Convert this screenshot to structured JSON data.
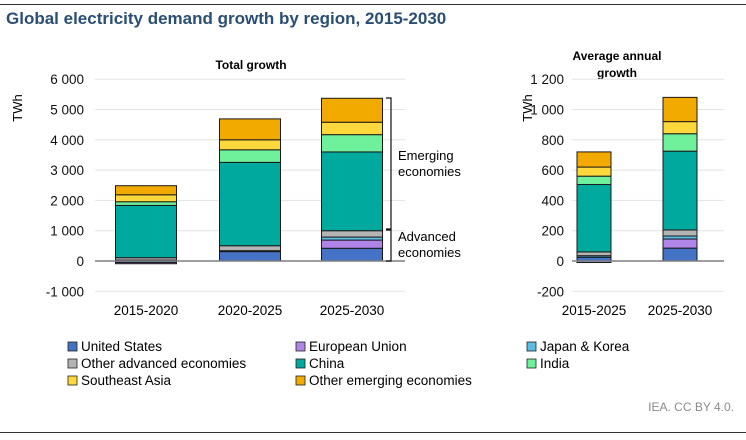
{
  "title": "Global electricity demand growth by region, 2015-2030",
  "credit": "IEA. CC BY 4.0.",
  "colors": {
    "United States": "#4472c4",
    "European Union": "#b085e8",
    "Japan & Korea": "#5bbce4",
    "Other advanced economies": "#b4b4b4",
    "China": "#00a99d",
    "India": "#6ff09a",
    "Southeast Asia": "#ffd93b",
    "Other emerging economies": "#f2a900"
  },
  "legend": [
    "United States",
    "European Union",
    "Japan & Korea",
    "Other advanced economies",
    "China",
    "India",
    "Southeast Asia",
    "Other emerging economies"
  ],
  "chart_data": [
    {
      "type": "bar",
      "stacked": true,
      "title": "Total  growth",
      "ylabel": "TWh",
      "ylim": [
        -1000,
        6000
      ],
      "yticks": [
        -1000,
        0,
        1000,
        2000,
        3000,
        4000,
        5000,
        6000
      ],
      "ytick_labels": [
        "-1 000",
        "0",
        "1 000",
        "2 000",
        "3 000",
        "4 000",
        "5 000",
        "6 000"
      ],
      "grid": true,
      "categories": [
        "2015-2020",
        "2020-2025",
        "2025-2030"
      ],
      "series": [
        {
          "name": "United States",
          "values": [
            -50,
            310,
            420
          ]
        },
        {
          "name": "European Union",
          "values": [
            -40,
            0,
            270
          ]
        },
        {
          "name": "Japan & Korea",
          "values": [
            30,
            30,
            100
          ]
        },
        {
          "name": "Other advanced economies",
          "values": [
            80,
            165,
            210
          ]
        },
        {
          "name": "China",
          "values": [
            1725,
            2750,
            2600
          ]
        },
        {
          "name": "India",
          "values": [
            120,
            415,
            570
          ]
        },
        {
          "name": "Southeast Asia",
          "values": [
            230,
            330,
            410
          ]
        },
        {
          "name": "Other emerging economies",
          "values": [
            300,
            690,
            790
          ]
        }
      ],
      "annotations": [
        "Emerging economies",
        "Advanced economies"
      ]
    },
    {
      "type": "bar",
      "stacked": true,
      "title": "Average annual growth",
      "ylabel": "TWh",
      "ylim": [
        -200,
        1200
      ],
      "yticks": [
        -200,
        0,
        200,
        400,
        600,
        800,
        1000,
        1200
      ],
      "ytick_labels": [
        "-200",
        "0",
        "200",
        "400",
        "600",
        "800",
        "1 000",
        "1 200"
      ],
      "grid": true,
      "categories": [
        "2015-2025",
        "2025-2030"
      ],
      "series": [
        {
          "name": "United States",
          "values": [
            25,
            85
          ]
        },
        {
          "name": "European Union",
          "values": [
            -10,
            60
          ]
        },
        {
          "name": "Japan & Korea",
          "values": [
            10,
            20
          ]
        },
        {
          "name": "Other advanced economies",
          "values": [
            25,
            40
          ]
        },
        {
          "name": "China",
          "values": [
            445,
            520
          ]
        },
        {
          "name": "India",
          "values": [
            55,
            115
          ]
        },
        {
          "name": "Southeast Asia",
          "values": [
            60,
            80
          ]
        },
        {
          "name": "Other emerging economies",
          "values": [
            100,
            160
          ]
        }
      ]
    }
  ]
}
